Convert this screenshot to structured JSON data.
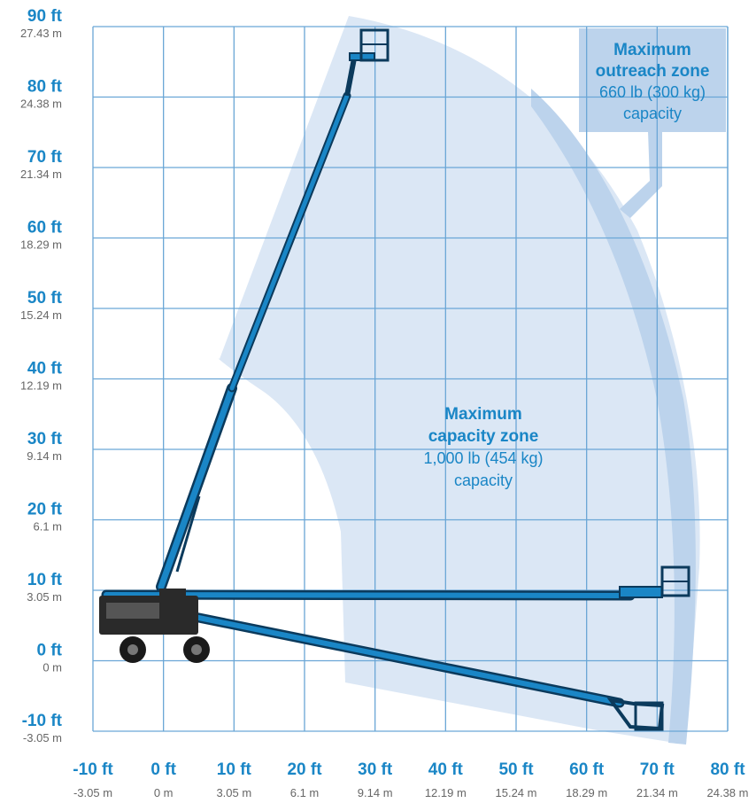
{
  "colors": {
    "grid": "#6aa6d6",
    "boom": "#1a86c6",
    "boom_dark": "#0b3a5c",
    "zone_capacity": "#dbe7f5",
    "zone_outreach": "#bcd3ec",
    "label_ft": "#1a86c6",
    "label_m": "#666666"
  },
  "chart_data": {
    "type": "diagram",
    "y_axis": [
      {
        "ft": "90 ft",
        "m": "27.43 m",
        "value": 90
      },
      {
        "ft": "80 ft",
        "m": "24.38 m",
        "value": 80
      },
      {
        "ft": "70 ft",
        "m": "21.34 m",
        "value": 70
      },
      {
        "ft": "60 ft",
        "m": "18.29 m",
        "value": 60
      },
      {
        "ft": "50 ft",
        "m": "15.24 m",
        "value": 50
      },
      {
        "ft": "40 ft",
        "m": "12.19 m",
        "value": 40
      },
      {
        "ft": "30 ft",
        "m": "9.14 m",
        "value": 30
      },
      {
        "ft": "20 ft",
        "m": "6.1 m",
        "value": 20
      },
      {
        "ft": "10 ft",
        "m": "3.05 m",
        "value": 10
      },
      {
        "ft": "0 ft",
        "m": "0 m",
        "value": 0
      },
      {
        "ft": "-10 ft",
        "m": "-3.05 m",
        "value": -10
      }
    ],
    "x_axis": [
      {
        "ft": "-10 ft",
        "m": "-3.05 m",
        "value": -10
      },
      {
        "ft": "0 ft",
        "m": "0 m",
        "value": 0
      },
      {
        "ft": "10 ft",
        "m": "3.05 m",
        "value": 10
      },
      {
        "ft": "20 ft",
        "m": "6.1 m",
        "value": 20
      },
      {
        "ft": "30 ft",
        "m": "9.14 m",
        "value": 30
      },
      {
        "ft": "40 ft",
        "m": "12.19 m",
        "value": 40
      },
      {
        "ft": "50 ft",
        "m": "15.24 m",
        "value": 50
      },
      {
        "ft": "60 ft",
        "m": "18.29 m",
        "value": 60
      },
      {
        "ft": "70 ft",
        "m": "21.34 m",
        "value": 70
      },
      {
        "ft": "80 ft",
        "m": "24.38 m",
        "value": 80
      }
    ],
    "xlim": [
      -10,
      80
    ],
    "ylim": [
      -10,
      90
    ],
    "zones": {
      "outreach": {
        "title_line1": "Maximum",
        "title_line2": "outreach zone",
        "capacity": "660 lb (300 kg)",
        "capacity_word": "capacity"
      },
      "capacity": {
        "title_line1": "Maximum",
        "title_line2": "capacity zone",
        "capacity": "1,000 lb (454 kg)",
        "capacity_word": "capacity"
      }
    },
    "boom_positions": [
      {
        "name": "max-height",
        "tip": [
          29,
          87
        ]
      },
      {
        "name": "max-outreach",
        "tip": [
          72,
          10
        ]
      },
      {
        "name": "below-grade",
        "tip": [
          69,
          -8
        ]
      }
    ]
  }
}
